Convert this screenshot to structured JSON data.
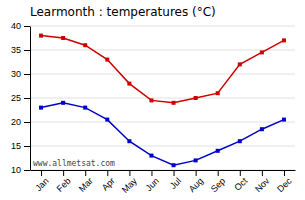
{
  "chart_data": {
    "type": "line",
    "title": "Learmonth : temperatures (°C)",
    "categories": [
      "Jan",
      "Feb",
      "Mar",
      "Apr",
      "May",
      "Jun",
      "Jul",
      "Aug",
      "Sep",
      "Oct",
      "Nov",
      "Dec"
    ],
    "series": [
      {
        "color": "#cc0000",
        "marker": "square",
        "values": [
          38,
          37.5,
          36,
          33,
          28,
          24.5,
          24,
          25,
          26,
          32,
          34.5,
          37
        ]
      },
      {
        "color": "#0000cc",
        "marker": "square",
        "values": [
          23,
          24,
          23,
          20.5,
          16,
          13,
          11,
          12,
          14,
          16,
          18.5,
          20.5
        ]
      }
    ],
    "ylim": [
      10,
      40
    ],
    "yticks": [
      10,
      15,
      20,
      25,
      30,
      35,
      40
    ],
    "grid": true,
    "annotations": [
      "www.allmetsat.com"
    ]
  }
}
